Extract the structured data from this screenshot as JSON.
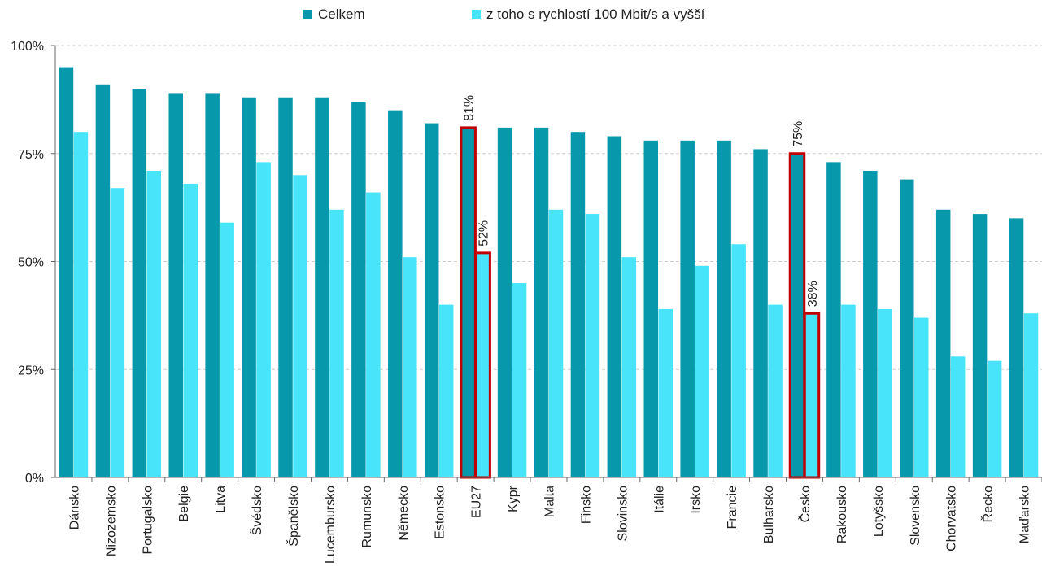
{
  "chart_data": {
    "type": "bar",
    "categories": [
      "Dánsko",
      "Nizozemsko",
      "Portugalsko",
      "Belgie",
      "Litva",
      "Švédsko",
      "Španělsko",
      "Lucembursko",
      "Rumunsko",
      "Německo",
      "Estonsko",
      "EU27",
      "Kypr",
      "Malta",
      "Finsko",
      "Slovinsko",
      "Itálie",
      "Irsko",
      "Francie",
      "Bulharsko",
      "Česko",
      "Rakousko",
      "Lotyšsko",
      "Slovensko",
      "Chorvatsko",
      "Řecko",
      "Maďarsko"
    ],
    "series": [
      {
        "name": "Celkem",
        "color": "#0898ac",
        "values": [
          95,
          91,
          90,
          89,
          89,
          88,
          88,
          88,
          87,
          85,
          82,
          81,
          81,
          81,
          80,
          79,
          78,
          78,
          78,
          76,
          75,
          73,
          71,
          69,
          62,
          61,
          60
        ]
      },
      {
        "name": "z toho s rychlostí 100 Mbit/s a vyšší",
        "color": "#48e4fa",
        "values": [
          80,
          67,
          71,
          68,
          59,
          73,
          70,
          62,
          66,
          51,
          40,
          52,
          45,
          62,
          61,
          51,
          39,
          49,
          54,
          40,
          38,
          40,
          39,
          37,
          28,
          27,
          38
        ]
      }
    ],
    "highlighted_categories": [
      "EU27",
      "Česko"
    ],
    "highlight_color": "#c00000",
    "data_labels": [
      {
        "category": "EU27",
        "series": 0,
        "text": "81%"
      },
      {
        "category": "EU27",
        "series": 1,
        "text": "52%"
      },
      {
        "category": "Česko",
        "series": 0,
        "text": "75%"
      },
      {
        "category": "Česko",
        "series": 1,
        "text": "38%"
      }
    ],
    "ylim": [
      0,
      100
    ],
    "yticks": [
      0,
      25,
      50,
      75,
      100
    ],
    "ytick_labels": [
      "0%",
      "25%",
      "50%",
      "75%",
      "100%"
    ],
    "grid": true,
    "legend_position": "top-center",
    "title": "",
    "xlabel": "",
    "ylabel": ""
  }
}
